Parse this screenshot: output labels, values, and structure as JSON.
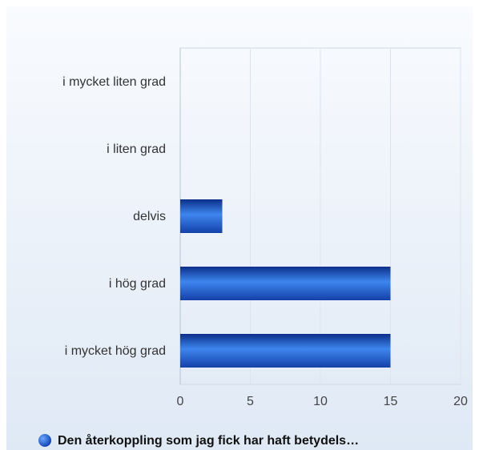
{
  "chart_data": {
    "type": "bar",
    "orientation": "horizontal",
    "categories": [
      "i mycket liten grad",
      "i liten grad",
      "delvis",
      "i hög grad",
      "i mycket hög grad"
    ],
    "series": [
      {
        "name": "Den återkoppling som jag fick har haft betydels…",
        "color": "#1f5fd0",
        "values": [
          0,
          0,
          3,
          15,
          15
        ]
      }
    ],
    "xlim": [
      0,
      20
    ],
    "xticks": [
      0,
      5,
      10,
      15,
      20
    ],
    "grid": true,
    "legend": "bottom"
  }
}
